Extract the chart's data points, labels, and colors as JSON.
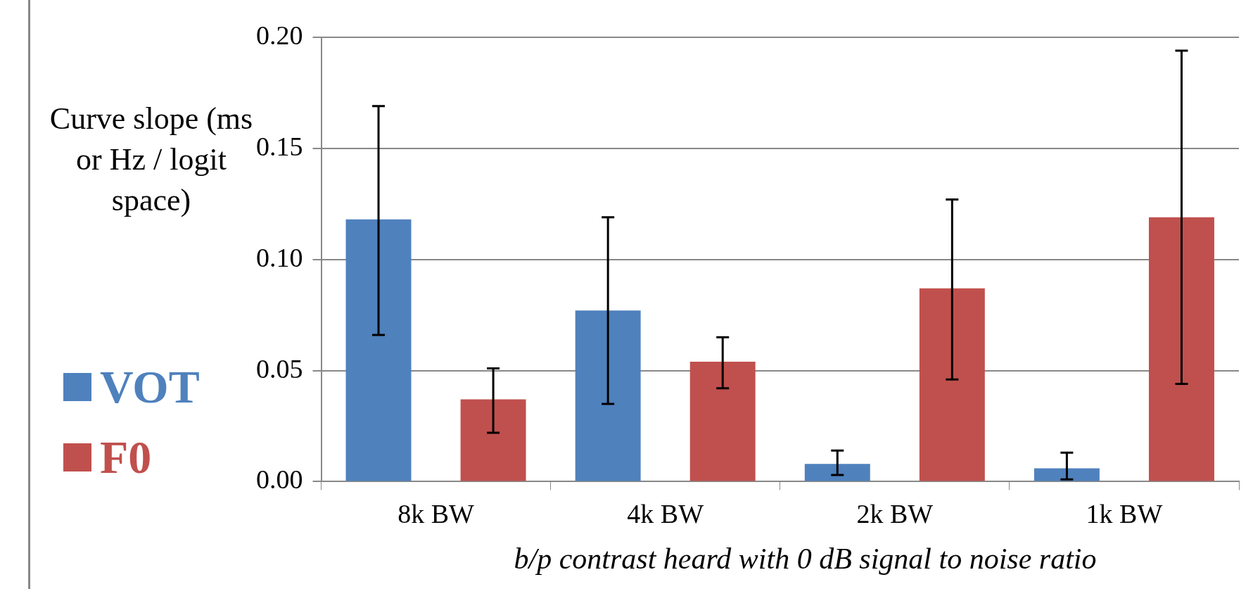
{
  "chart_data": {
    "type": "bar",
    "categories": [
      "8k BW",
      "4k BW",
      "2k BW",
      "1k BW"
    ],
    "series": [
      {
        "name": "VOT",
        "color": "#4f81bd",
        "values": [
          0.118,
          0.077,
          0.008,
          0.006
        ],
        "errors": [
          [
            0.066,
            0.169
          ],
          [
            0.035,
            0.119
          ],
          [
            0.003,
            0.014
          ],
          [
            0.001,
            0.013
          ]
        ]
      },
      {
        "name": "F0",
        "color": "#c0504d",
        "values": [
          0.037,
          0.054,
          0.087,
          0.119
        ],
        "errors": [
          [
            0.022,
            0.051
          ],
          [
            0.042,
            0.065
          ],
          [
            0.046,
            0.127
          ],
          [
            0.044,
            0.194
          ]
        ]
      }
    ],
    "ylim": [
      0,
      0.2
    ],
    "yticks": [
      {
        "value": 0,
        "label": "0.00"
      },
      {
        "value": 0.05,
        "label": "0.05"
      },
      {
        "value": 0.1,
        "label": "0.10"
      },
      {
        "value": 0.15,
        "label": "0.15"
      },
      {
        "value": 0.2,
        "label": "0.20"
      }
    ],
    "ylabel": "Curve slope (ms or Hz / logit space)",
    "xlabel": "b/p contrast heard with 0 dB signal to noise ratio",
    "grid": "y",
    "legend": "left"
  }
}
